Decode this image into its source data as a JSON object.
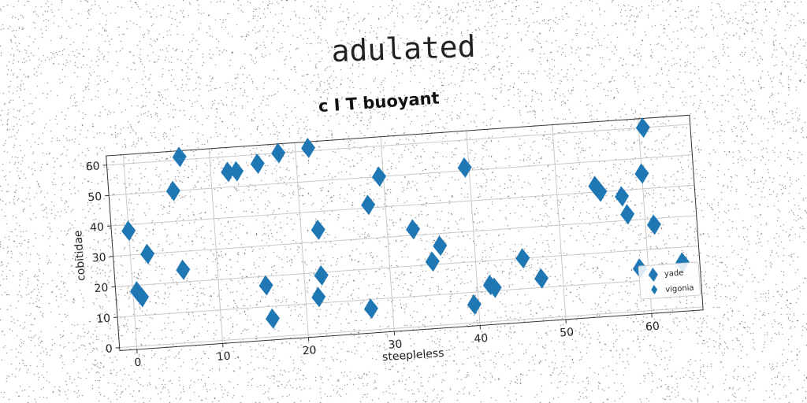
{
  "page": {
    "title": "adulated"
  },
  "colors": {
    "marker": "#1f77b4",
    "grid": "#c8c8c8",
    "axis": "#333333"
  },
  "chart_data": {
    "type": "scatter",
    "title": "c I T buoyant",
    "xlabel": "steepleless",
    "ylabel": "cobitidae",
    "xlim": [
      -2,
      66
    ],
    "ylim": [
      -1,
      63
    ],
    "xticks": [
      0,
      10,
      20,
      30,
      40,
      50,
      60
    ],
    "yticks": [
      0,
      10,
      20,
      30,
      40,
      50,
      60
    ],
    "grid": true,
    "legend_position": "lower-right",
    "series": [
      {
        "name": "yade",
        "marker": "diamond",
        "size": "large",
        "x": [
          0,
          0.5,
          1,
          2,
          5.5,
          6,
          6.5,
          12,
          13,
          15.5,
          15.5,
          16,
          18,
          21.5,
          21.5,
          22,
          22,
          27.5,
          28,
          29.5,
          33,
          35,
          36,
          39.5,
          39.5,
          41.5,
          42,
          45.5,
          47.5,
          54.5,
          55,
          57.5,
          58,
          59,
          60,
          60.5,
          61,
          64
        ],
        "y": [
          38,
          18,
          16,
          30,
          50,
          24,
          61,
          55,
          55,
          57,
          17,
          6,
          60,
          61,
          12,
          34,
          19,
          7,
          41,
          50,
          32,
          21,
          26,
          6,
          51,
          12,
          11,
          20,
          13,
          42,
          40,
          38,
          32,
          14,
          45,
          60,
          28,
          15
        ]
      },
      {
        "name": "vigonia",
        "marker": "diamond",
        "size": "small",
        "x": [],
        "y": []
      }
    ]
  }
}
